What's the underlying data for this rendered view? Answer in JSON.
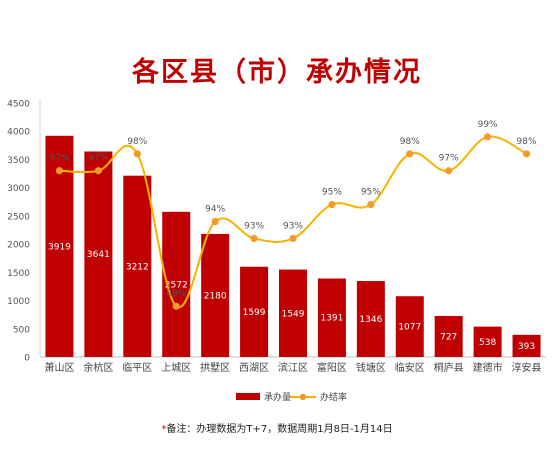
{
  "chart_data": {
    "type": "bar",
    "title": "各区县（市）承办情况",
    "categories": [
      "萧山区",
      "余杭区",
      "临平区",
      "上城区",
      "拱墅区",
      "西湖区",
      "滨江区",
      "富阳区",
      "钱塘区",
      "临安区",
      "桐庐县",
      "建德市",
      "淳安县"
    ],
    "series": [
      {
        "name": "承办量",
        "type": "bar",
        "axis": "left",
        "color": "#c00000",
        "values": [
          3919,
          3641,
          3212,
          2572,
          2180,
          1599,
          1549,
          1391,
          1346,
          1077,
          727,
          538,
          393
        ],
        "value_labels": [
          "3919",
          "3641",
          "3212",
          "2572",
          "2180",
          "1599",
          "1549",
          "1391",
          "1346",
          "1077",
          "727",
          "538",
          "393"
        ]
      },
      {
        "name": "办结率",
        "type": "line",
        "axis": "right",
        "color": "#f5b400",
        "values": [
          97,
          97,
          98,
          89,
          94,
          93,
          93,
          95,
          95,
          98,
          97,
          99,
          98
        ],
        "value_labels": [
          "97%",
          "97%",
          "98%",
          "89%",
          "94%",
          "93%",
          "93%",
          "95%",
          "95%",
          "98%",
          "97%",
          "99%",
          "98%"
        ]
      }
    ],
    "y_ticks": [
      "0",
      "500",
      "1000",
      "1500",
      "2000",
      "2500",
      "3000",
      "3500",
      "4000",
      "4500"
    ],
    "ylim": [
      0,
      4500
    ],
    "grid": false,
    "legend_position": "bottom",
    "colors": {
      "bar": "#c00000",
      "line": "#f5b400",
      "marker": "#f39a2b",
      "title": "#c00000"
    }
  },
  "footnote": {
    "mark": "*",
    "text": "备注：办理数据为T+7，数据周期1月8日-1月14日"
  }
}
